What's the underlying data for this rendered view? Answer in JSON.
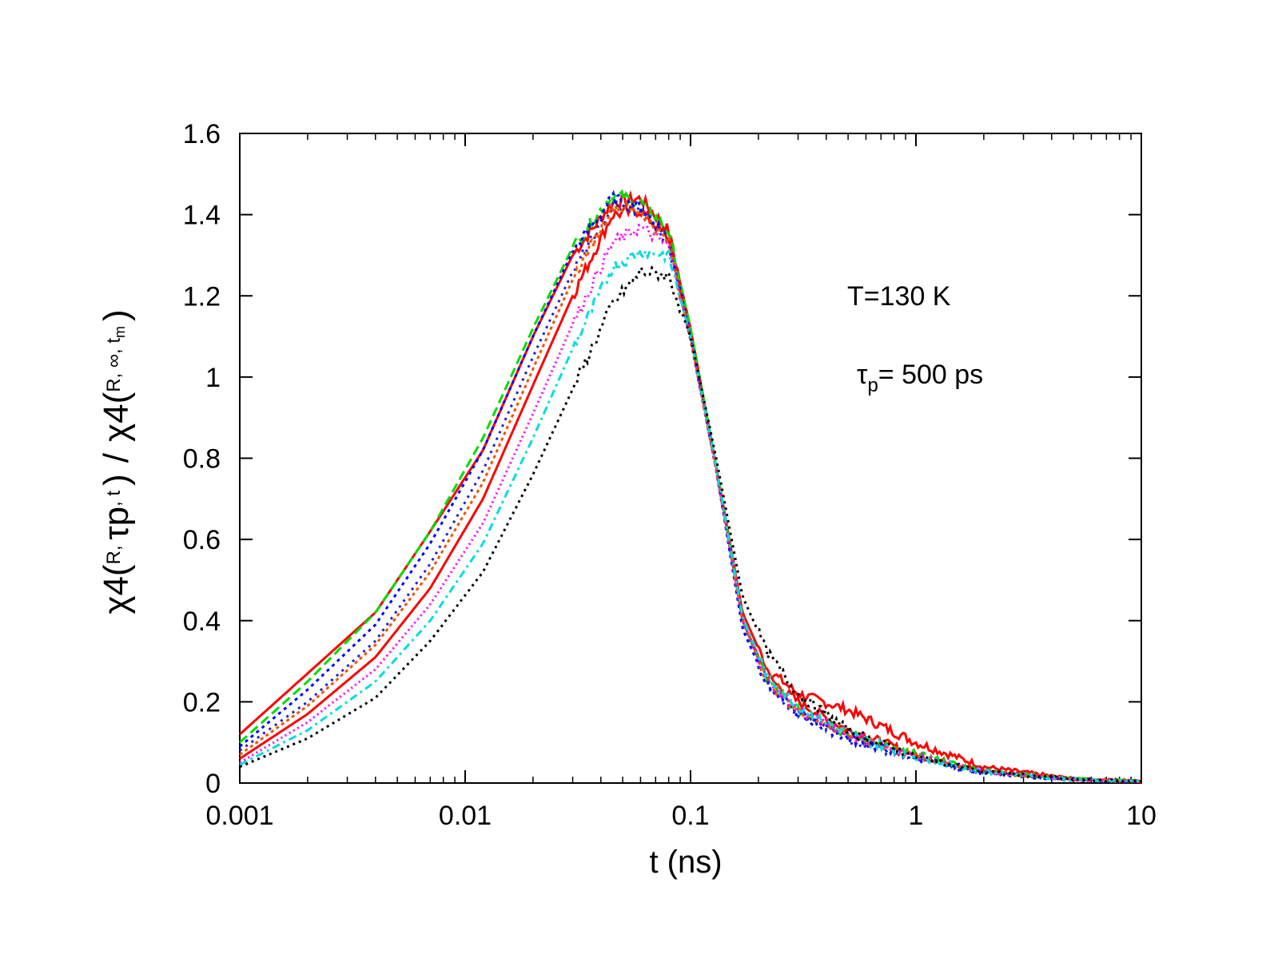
{
  "chart_data": {
    "type": "line",
    "xscale": "log",
    "xlim": [
      0.001,
      10
    ],
    "ylim": [
      0,
      1.6
    ],
    "xlabel": "t (ns)",
    "xticks": [
      0.001,
      0.01,
      0.1,
      1,
      10
    ],
    "xtick_labels": [
      "0.001",
      "0.01",
      "0.1",
      "1",
      "10"
    ],
    "yticks": [
      0,
      0.2,
      0.4,
      0.6,
      0.8,
      1,
      1.2,
      1.4,
      1.6
    ],
    "ytick_labels": [
      "0",
      "0.2",
      "0.4",
      "0.6",
      "0.8",
      "1",
      "1.2",
      "1.4",
      "1.6"
    ],
    "ylabel_parts": {
      "chi": "χ4(",
      "sub1": "R, ",
      "tau": "τp",
      "sub2": ", t",
      "close1": ")",
      "slash": "/",
      "chi2": "χ4(",
      "sub3": "R, ∞, t",
      "sub3m": "m",
      "close2": ")"
    },
    "annotations": {
      "temperature": "T=130 K",
      "tau_symbol": "τ",
      "tau_sub": "p",
      "tau_value": "= 500 ps"
    },
    "x": [
      0.001,
      0.002,
      0.004,
      0.007,
      0.012,
      0.02,
      0.03,
      0.045,
      0.06,
      0.08,
      0.1,
      0.13,
      0.17,
      0.22,
      0.3,
      0.5,
      1,
      2,
      5,
      10
    ],
    "series": [
      {
        "name": "red-solid-upper",
        "color": "#ff0000",
        "dash": "",
        "values": [
          0.12,
          0.27,
          0.42,
          0.62,
          0.82,
          1.1,
          1.3,
          1.43,
          1.44,
          1.36,
          1.12,
          0.78,
          0.42,
          0.28,
          0.22,
          0.18,
          0.1,
          0.04,
          0.01,
          0.005
        ]
      },
      {
        "name": "red-solid-lower",
        "color": "#ff0000",
        "dash": "",
        "values": [
          0.06,
          0.17,
          0.31,
          0.48,
          0.7,
          0.98,
          1.2,
          1.4,
          1.41,
          1.34,
          1.1,
          0.78,
          0.4,
          0.26,
          0.2,
          0.13,
          0.07,
          0.03,
          0.01,
          0.005
        ]
      },
      {
        "name": "green-dashed",
        "color": "#00dd00",
        "dash": "12 6",
        "values": [
          0.1,
          0.25,
          0.42,
          0.62,
          0.85,
          1.12,
          1.32,
          1.45,
          1.43,
          1.36,
          1.12,
          0.78,
          0.4,
          0.25,
          0.18,
          0.12,
          0.07,
          0.03,
          0.01,
          0.005
        ]
      },
      {
        "name": "blue-dotted-1",
        "color": "#0000ff",
        "dash": "4 5",
        "values": [
          0.09,
          0.23,
          0.39,
          0.59,
          0.82,
          1.1,
          1.31,
          1.44,
          1.42,
          1.34,
          1.1,
          0.77,
          0.38,
          0.24,
          0.17,
          0.11,
          0.06,
          0.025,
          0.008,
          0.004
        ]
      },
      {
        "name": "blue-dotted-2",
        "color": "#2020cc",
        "dash": "3 6",
        "values": [
          0.08,
          0.2,
          0.35,
          0.54,
          0.77,
          1.05,
          1.26,
          1.42,
          1.41,
          1.33,
          1.09,
          0.77,
          0.39,
          0.24,
          0.17,
          0.11,
          0.06,
          0.025,
          0.008,
          0.004
        ]
      },
      {
        "name": "orange-dotted",
        "color": "#ee5500",
        "dash": "4 4",
        "values": [
          0.07,
          0.19,
          0.34,
          0.52,
          0.74,
          1.02,
          1.24,
          1.42,
          1.41,
          1.33,
          1.09,
          0.77,
          0.4,
          0.25,
          0.18,
          0.12,
          0.065,
          0.028,
          0.009,
          0.004
        ]
      },
      {
        "name": "magenta-dotted",
        "color": "#ff00ff",
        "dash": "2 4",
        "values": [
          0.05,
          0.15,
          0.28,
          0.44,
          0.64,
          0.91,
          1.13,
          1.33,
          1.37,
          1.32,
          1.1,
          0.77,
          0.4,
          0.25,
          0.18,
          0.12,
          0.065,
          0.028,
          0.009,
          0.004
        ]
      },
      {
        "name": "cyan-dashdot",
        "color": "#00dddd",
        "dash": "10 5 3 5",
        "values": [
          0.045,
          0.13,
          0.25,
          0.4,
          0.59,
          0.85,
          1.07,
          1.27,
          1.31,
          1.3,
          1.1,
          0.78,
          0.41,
          0.26,
          0.19,
          0.12,
          0.065,
          0.028,
          0.009,
          0.004
        ]
      },
      {
        "name": "black-dotted",
        "color": "#000000",
        "dash": "3 5",
        "values": [
          0.04,
          0.11,
          0.21,
          0.35,
          0.52,
          0.76,
          0.97,
          1.18,
          1.26,
          1.25,
          1.1,
          0.8,
          0.46,
          0.32,
          0.22,
          0.13,
          0.065,
          0.028,
          0.009,
          0.004
        ]
      }
    ]
  }
}
